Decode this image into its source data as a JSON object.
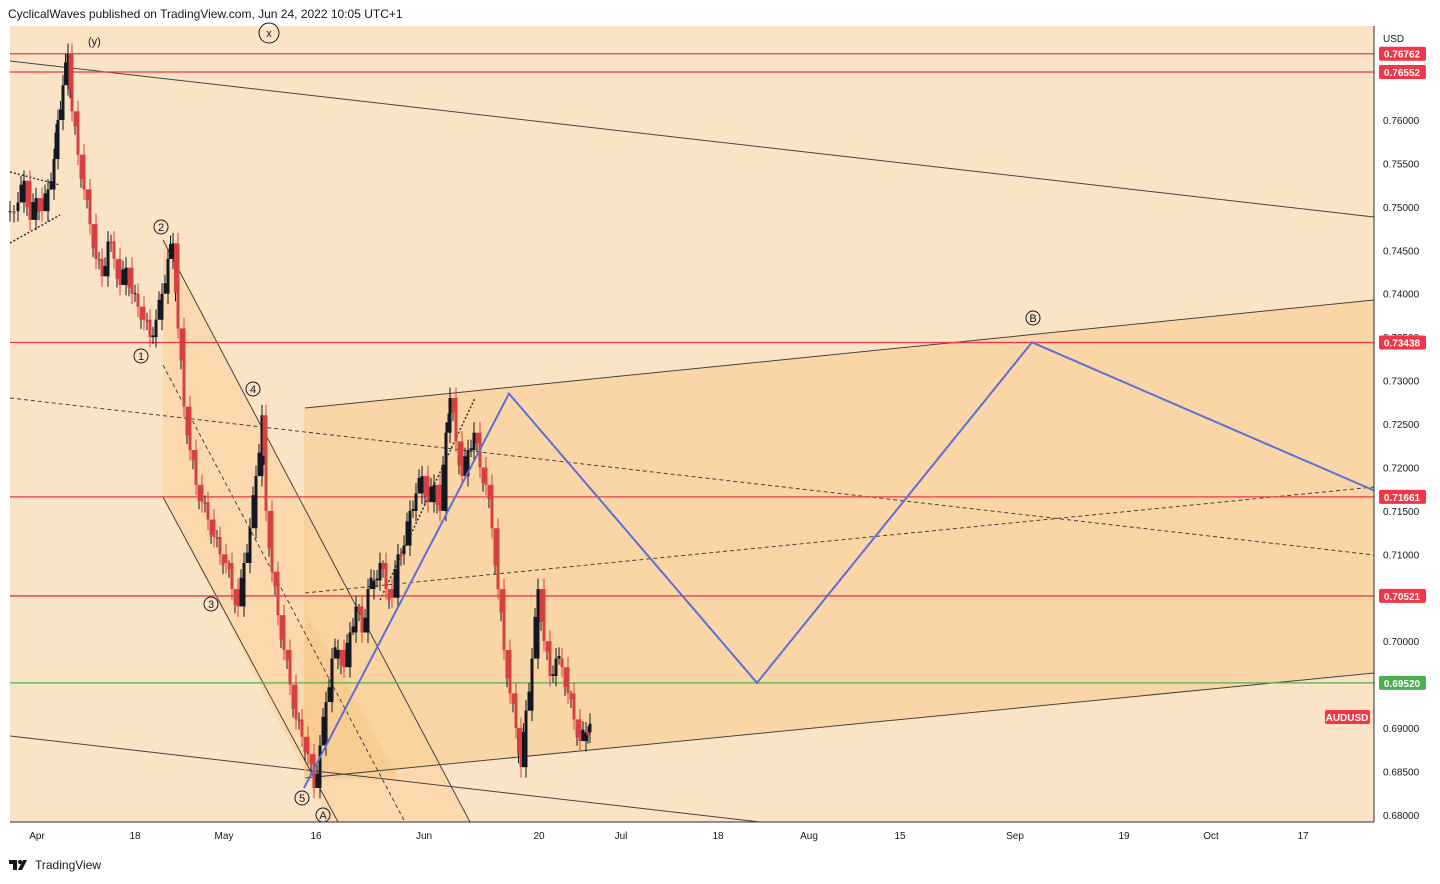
{
  "header": {
    "publish_line": "CyclicalWaves published on TradingView.com, Jun 24, 2022 10:05 UTC+1"
  },
  "footer": {
    "brand": "TradingView"
  },
  "colors": {
    "band_outer": "#fbe3c6",
    "band_mid": "#fbd7a8",
    "band_inner": "#fad09a",
    "red_line": "#f23645",
    "green_line": "#4caf50",
    "projection": "#5b6fd6",
    "candle": "#131722",
    "candle_red": "#d64040",
    "axis_bg": "#ffffff"
  },
  "chart_data": {
    "type": "candlestick",
    "symbol": "AUDUSD",
    "currency": "USD",
    "y_range": [
      0.6775,
      0.7705
    ],
    "y_ticks": [
      "0.76000",
      "0.75500",
      "0.75000",
      "0.74500",
      "0.74000",
      "0.73500",
      "0.73000",
      "0.72500",
      "0.72000",
      "0.71500",
      "0.71000",
      "0.70500",
      "0.70000",
      "0.69500",
      "0.69000",
      "0.68500",
      "0.68000"
    ],
    "x_ticks": [
      "Apr",
      "18",
      "May",
      "16",
      "Jun",
      "20",
      "Jul",
      "18",
      "Aug",
      "15",
      "Sep",
      "19",
      "Oct",
      "17"
    ],
    "horizontal_levels": [
      {
        "value": 0.76762,
        "label": "0.76762",
        "color": "red"
      },
      {
        "value": 0.76552,
        "label": "0.76552",
        "color": "red"
      },
      {
        "value": 0.73438,
        "label": "0.73438",
        "color": "red"
      },
      {
        "value": 0.71661,
        "label": "0.71661",
        "color": "red"
      },
      {
        "value": 0.70521,
        "label": "0.70521",
        "color": "red"
      },
      {
        "value": 0.6952,
        "label": "0.69520",
        "color": "green"
      }
    ],
    "symbol_tag": "AUDUSD",
    "wave_labels": [
      "(y)",
      "x",
      "1",
      "2",
      "3",
      "4",
      "5",
      "A",
      "B"
    ],
    "price_path": [
      [
        0,
        0.7495
      ],
      [
        8,
        0.7505
      ],
      [
        14,
        0.753
      ],
      [
        20,
        0.7485
      ],
      [
        26,
        0.751
      ],
      [
        32,
        0.7495
      ],
      [
        38,
        0.752
      ],
      [
        44,
        0.7555
      ],
      [
        48,
        0.76
      ],
      [
        53,
        0.764
      ],
      [
        58,
        0.7676
      ],
      [
        62,
        0.761
      ],
      [
        68,
        0.756
      ],
      [
        74,
        0.752
      ],
      [
        80,
        0.748
      ],
      [
        86,
        0.744
      ],
      [
        92,
        0.742
      ],
      [
        98,
        0.746
      ],
      [
        104,
        0.744
      ],
      [
        110,
        0.741
      ],
      [
        116,
        0.743
      ],
      [
        122,
        0.74
      ],
      [
        128,
        0.7385
      ],
      [
        134,
        0.737
      ],
      [
        140,
        0.735
      ],
      [
        146,
        0.737
      ],
      [
        152,
        0.74
      ],
      [
        158,
        0.744
      ],
      [
        163,
        0.7458
      ],
      [
        168,
        0.736
      ],
      [
        174,
        0.727
      ],
      [
        180,
        0.722
      ],
      [
        186,
        0.718
      ],
      [
        192,
        0.716
      ],
      [
        198,
        0.714
      ],
      [
        204,
        0.712
      ],
      [
        210,
        0.71
      ],
      [
        216,
        0.709
      ],
      [
        222,
        0.706
      ],
      [
        228,
        0.704
      ],
      [
        234,
        0.709
      ],
      [
        240,
        0.713
      ],
      [
        246,
        0.719
      ],
      [
        252,
        0.726
      ],
      [
        256,
        0.715
      ],
      [
        262,
        0.708
      ],
      [
        268,
        0.703
      ],
      [
        274,
        0.699
      ],
      [
        280,
        0.695
      ],
      [
        286,
        0.691
      ],
      [
        292,
        0.689
      ],
      [
        298,
        0.687
      ],
      [
        304,
        0.6831
      ],
      [
        310,
        0.688
      ],
      [
        316,
        0.693
      ],
      [
        322,
        0.698
      ],
      [
        328,
        0.699
      ],
      [
        334,
        0.697
      ],
      [
        340,
        0.701
      ],
      [
        346,
        0.704
      ],
      [
        352,
        0.701
      ],
      [
        358,
        0.706
      ],
      [
        364,
        0.707
      ],
      [
        370,
        0.709
      ],
      [
        376,
        0.706
      ],
      [
        382,
        0.705
      ],
      [
        388,
        0.71
      ],
      [
        394,
        0.711
      ],
      [
        400,
        0.715
      ],
      [
        406,
        0.717
      ],
      [
        412,
        0.719
      ],
      [
        418,
        0.716
      ],
      [
        424,
        0.718
      ],
      [
        430,
        0.715
      ],
      [
        436,
        0.724
      ],
      [
        440,
        0.728
      ],
      [
        446,
        0.723
      ],
      [
        452,
        0.719
      ],
      [
        458,
        0.722
      ],
      [
        464,
        0.724
      ],
      [
        470,
        0.72
      ],
      [
        476,
        0.718
      ],
      [
        482,
        0.713
      ],
      [
        488,
        0.706
      ],
      [
        494,
        0.699
      ],
      [
        500,
        0.694
      ],
      [
        506,
        0.69
      ],
      [
        511,
        0.6855
      ],
      [
        516,
        0.692
      ],
      [
        522,
        0.698
      ],
      [
        528,
        0.706
      ],
      [
        534,
        0.7
      ],
      [
        540,
        0.696
      ],
      [
        546,
        0.698
      ],
      [
        552,
        0.697
      ],
      [
        558,
        0.694
      ],
      [
        564,
        0.691
      ],
      [
        570,
        0.6885
      ],
      [
        576,
        0.6895
      ],
      [
        580,
        0.6905
      ]
    ],
    "projection_path": [
      [
        304,
        0.6831
      ],
      [
        509,
        0.7285
      ],
      [
        757,
        0.6952
      ],
      [
        1032,
        0.7344
      ],
      [
        1375,
        0.7173
      ]
    ]
  }
}
